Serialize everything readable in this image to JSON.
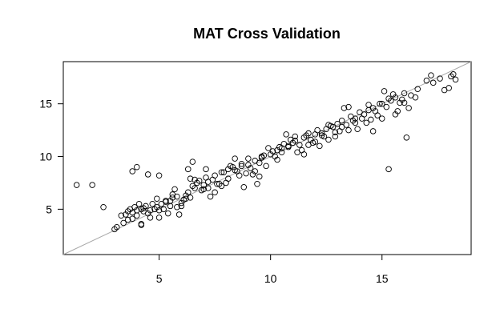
{
  "chart_data": {
    "type": "scatter",
    "title": "MAT Cross Validation",
    "xlabel": "",
    "ylabel": "",
    "xlim": [
      0.7,
      19.0
    ],
    "ylim": [
      0.7,
      19.0
    ],
    "x_ticks": [
      5,
      10,
      15
    ],
    "y_ticks": [
      5,
      10,
      15
    ],
    "x_tick_labels": [
      "5",
      "10",
      "15"
    ],
    "y_tick_labels": [
      "5",
      "10",
      "15"
    ],
    "reference_line": {
      "type": "y=x",
      "color": "#a9a9a9"
    },
    "grid": false,
    "point_style": "open-circle",
    "x": [
      1.3,
      2.0,
      2.5,
      3.0,
      3.1,
      3.3,
      3.4,
      3.5,
      3.6,
      3.7,
      3.8,
      3.8,
      3.9,
      4.0,
      4.0,
      4.1,
      4.2,
      4.2,
      4.3,
      4.4,
      4.5,
      4.6,
      4.7,
      4.8,
      4.9,
      5.0,
      5.0,
      5.1,
      5.2,
      5.3,
      5.4,
      5.5,
      5.6,
      5.8,
      5.9,
      6.0,
      6.1,
      6.2,
      6.3,
      6.4,
      6.5,
      6.6,
      6.7,
      6.8,
      7.0,
      7.1,
      7.2,
      7.4,
      7.5,
      7.6,
      7.8,
      8.0,
      8.1,
      8.3,
      8.5,
      8.7,
      8.9,
      9.0,
      9.1,
      9.3,
      9.5,
      9.6,
      9.8,
      10.0,
      10.1,
      10.3,
      10.5,
      10.6,
      10.8,
      11.0,
      11.1,
      11.3,
      11.5,
      11.6,
      11.8,
      12.0,
      12.1,
      12.3,
      12.5,
      12.7,
      12.9,
      13.0,
      13.2,
      13.4,
      13.6,
      13.8,
      14.0,
      14.2,
      14.4,
      14.6,
      14.8,
      15.0,
      15.2,
      15.4,
      15.6,
      15.8,
      16.0,
      16.3,
      16.6,
      17.0,
      17.3,
      17.6,
      18.0,
      18.1,
      18.2,
      18.3,
      3.8,
      4.0,
      4.3,
      4.6,
      5.5,
      5.8,
      6.2,
      6.6,
      6.9,
      7.2,
      7.5,
      7.8,
      8.1,
      8.4,
      8.7,
      9.0,
      9.3,
      9.6,
      9.9,
      10.2,
      10.5,
      10.8,
      11.1,
      11.4,
      11.7,
      12.0,
      12.3,
      12.6,
      12.9,
      13.2,
      13.5,
      13.8,
      14.1,
      14.4,
      14.7,
      15.0,
      15.3,
      15.6,
      15.9,
      16.2,
      4.5,
      5.0,
      5.3,
      6.0,
      6.5,
      7.0,
      7.7,
      8.2,
      8.8,
      9.2,
      9.7,
      10.3,
      10.9,
      11.5,
      12.2,
      12.8,
      13.3,
      13.9,
      14.5,
      15.1,
      15.5,
      16.0,
      16.5,
      17.2,
      17.8,
      5.6,
      6.4,
      7.3,
      8.6,
      9.4,
      10.7,
      11.2,
      11.9,
      12.4,
      13.1,
      13.7,
      14.3,
      14.9,
      15.7,
      3.6,
      4.2,
      4.9,
      5.7,
      6.3,
      7.1,
      7.9,
      8.4,
      9.5,
      10.4,
      11.7,
      12.6,
      13.5,
      14.6,
      15.3,
      16.1
    ],
    "y": [
      7.3,
      7.3,
      5.2,
      3.1,
      3.3,
      4.4,
      3.7,
      4.5,
      4.8,
      5.0,
      4.7,
      8.6,
      5.2,
      4.4,
      9.0,
      5.5,
      5.0,
      3.6,
      4.8,
      5.3,
      4.6,
      4.9,
      5.5,
      5.0,
      5.2,
      4.9,
      8.2,
      5.5,
      5.0,
      5.8,
      4.6,
      5.3,
      6.1,
      5.2,
      4.5,
      5.6,
      5.9,
      6.3,
      6.6,
      6.1,
      9.5,
      7.0,
      7.5,
      7.7,
      7.3,
      8.0,
      7.0,
      7.8,
      8.2,
      7.4,
      8.5,
      7.5,
      8.8,
      9.0,
      8.6,
      9.3,
      8.4,
      9.2,
      8.9,
      9.6,
      9.4,
      10.0,
      9.1,
      10.2,
      10.5,
      10.6,
      10.8,
      11.2,
      10.9,
      11.3,
      11.5,
      11.1,
      11.8,
      12.0,
      11.6,
      12.1,
      12.5,
      12.2,
      12.6,
      12.9,
      12.3,
      13.1,
      13.4,
      13.0,
      13.8,
      13.6,
      14.2,
      14.0,
      14.4,
      14.6,
      13.9,
      15.0,
      14.7,
      15.3,
      15.6,
      15.1,
      16.0,
      15.8,
      16.4,
      17.2,
      17.0,
      17.4,
      16.5,
      17.6,
      17.8,
      17.3,
      4.1,
      4.9,
      5.1,
      4.2,
      5.8,
      6.2,
      6.0,
      7.8,
      6.8,
      7.6,
      6.6,
      7.2,
      7.9,
      8.7,
      9.1,
      9.8,
      8.6,
      9.9,
      10.8,
      10.0,
      10.4,
      11.0,
      11.9,
      10.6,
      12.2,
      11.4,
      12.0,
      13.0,
      11.9,
      12.8,
      12.5,
      13.2,
      13.6,
      14.9,
      14.3,
      13.6,
      15.5,
      14.0,
      15.4,
      14.6,
      8.3,
      4.2,
      5.7,
      5.3,
      7.2,
      6.9,
      7.4,
      9.1,
      7.1,
      8.3,
      10.1,
      9.7,
      11.6,
      10.2,
      11.0,
      12.8,
      14.6,
      12.6,
      13.5,
      16.2,
      15.9,
      15.1,
      15.6,
      17.7,
      16.3,
      6.4,
      7.9,
      6.2,
      8.2,
      7.4,
      12.1,
      10.4,
      11.3,
      11.9,
      12.4,
      13.4,
      13.2,
      15.0,
      14.3,
      4.0,
      3.5,
      6.0,
      6.9,
      8.8,
      8.8,
      8.5,
      9.8,
      8.1,
      10.9,
      11.1,
      11.6,
      14.7,
      12.4,
      8.8,
      11.8
    ]
  }
}
